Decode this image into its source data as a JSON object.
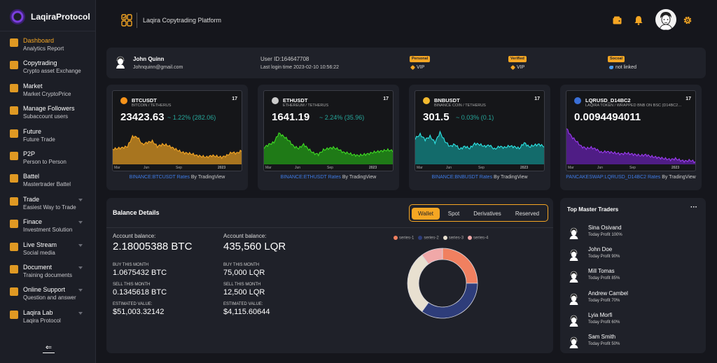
{
  "brand": {
    "name": "LaqiraProtocol"
  },
  "sidebar": {
    "items": [
      {
        "title": "Dashboard",
        "subtitle": "Analytics Report",
        "icon": "home-icon",
        "active": true
      },
      {
        "title": "Copytrading",
        "subtitle": "Crypto asset Exchange",
        "icon": "coin-icon"
      },
      {
        "title": "Market",
        "subtitle": "Market CryptoPrice",
        "icon": "gear-icon"
      },
      {
        "title": "Manage Followers",
        "subtitle": "Subaccount users",
        "icon": "users-icon"
      },
      {
        "title": "Future",
        "subtitle": "Future Trade",
        "icon": "chart-icon"
      },
      {
        "title": "P2P",
        "subtitle": "Person to Person",
        "icon": "p2p-icon"
      },
      {
        "title": "Battel",
        "subtitle": "Mastertrader Battel",
        "icon": "trophy-icon"
      },
      {
        "title": "Trade",
        "subtitle": "Easiest Way to Trade",
        "icon": "hand-icon",
        "chevron": true
      },
      {
        "title": "Finace",
        "subtitle": "Investment Solution",
        "icon": "dollar-icon",
        "chevron": true
      },
      {
        "title": "Live Stream",
        "subtitle": "Social media",
        "icon": "stream-icon",
        "chevron": true
      },
      {
        "title": "Document",
        "subtitle": "Training documents",
        "icon": "document-icon",
        "chevron": true
      },
      {
        "title": "Online Support",
        "subtitle": "Question and answer",
        "icon": "support-icon",
        "chevron": true
      },
      {
        "title": "Laqira Lab",
        "subtitle": "Laqira Protocol",
        "icon": "lab-icon",
        "chevron": true
      }
    ],
    "collapse_glyph": "⇐"
  },
  "topbar": {
    "title": "Laqira Copytrading Platform"
  },
  "user": {
    "name": "John Quinn",
    "email": "Johnquinn@gmail.com",
    "id": "User ID:164647708",
    "last_login": "Last login time 2023-02-10 10:56:22",
    "badges": [
      {
        "label": "Personal",
        "value": "VIP"
      },
      {
        "label": "Verified",
        "value": "VIP"
      },
      {
        "label": "Socoal",
        "value": "not linked"
      }
    ]
  },
  "tickers": [
    {
      "symbol": "BTCUSDT",
      "name": "BITCOIN / TETHERUS",
      "price": "23423.63",
      "change": "~ 1.22% (282.06)",
      "color": "#f7931a",
      "line": "#f5a623",
      "fill": "#a8751f",
      "link": "BINANCE:BTCUSDT Rates",
      "by": " By TradingView",
      "axis": [
        "Mar",
        "Jun",
        "Sep",
        "2023"
      ],
      "coin": "btc-icon",
      "chart": [
        0.62,
        0.6,
        0.58,
        0.55,
        0.3,
        0.32,
        0.5,
        0.45,
        0.42,
        0.55,
        0.5,
        0.52,
        0.58,
        0.64,
        0.7,
        0.72,
        0.74,
        0.78,
        0.8,
        0.82,
        0.78,
        0.8,
        0.82,
        0.78,
        0.7,
        0.72,
        0.66
      ]
    },
    {
      "symbol": "ETHUSDT",
      "name": "ETHEREUM / TETHERUS",
      "price": "1641.19",
      "change": "~ 2.24% (35.96)",
      "color": "#cccccc",
      "line": "#3fdb24",
      "fill": "#1f7a17",
      "link": "BINANCE:ETHUSDT Rates",
      "by": " By TradingView",
      "axis": [
        "Mar",
        "Jun",
        "Sep",
        "2023"
      ],
      "coin": "eth-icon",
      "chart": [
        0.58,
        0.5,
        0.45,
        0.22,
        0.3,
        0.4,
        0.55,
        0.6,
        0.5,
        0.62,
        0.72,
        0.75,
        0.64,
        0.6,
        0.58,
        0.62,
        0.7,
        0.72,
        0.76,
        0.78,
        0.76,
        0.74,
        0.7,
        0.68,
        0.66,
        0.64,
        0.66
      ]
    },
    {
      "symbol": "BNBUSDT",
      "name": "BINANCE COIN / TETHERUS",
      "price": "301.5",
      "change": "~ 0.03% (0.1)",
      "color": "#f3ba2f",
      "line": "#2ee6e6",
      "fill": "#136b6b",
      "link": "BINANCE:BNBUSDT Rates",
      "by": " By TradingView",
      "axis": [
        "Mar",
        "Jun",
        "Sep",
        "2023"
      ],
      "coin": "bnb-icon",
      "chart": [
        0.35,
        0.25,
        0.38,
        0.3,
        0.45,
        0.2,
        0.42,
        0.55,
        0.5,
        0.62,
        0.55,
        0.6,
        0.48,
        0.5,
        0.55,
        0.52,
        0.62,
        0.55,
        0.58,
        0.54,
        0.56,
        0.6,
        0.46,
        0.56,
        0.52,
        0.5,
        0.55
      ]
    },
    {
      "symbol": "LQRUSD_D14BC2",
      "name": "LAQIRA TOKEN / WRAPPED BNB ON BSC (D14BC2…",
      "price": "0.0094494011",
      "change": "",
      "color": "#3a6fd6",
      "line": "#9b3bf0",
      "fill": "#4f1d85",
      "link": "PANCAKESWAP:LQRUSD_D14BC2 Rates",
      "by": " By TradingView",
      "axis": [
        "Mar",
        "Jun",
        "Sep",
        "2023"
      ],
      "coin": "flag-icon",
      "chart": [
        0.1,
        0.3,
        0.42,
        0.55,
        0.6,
        0.58,
        0.62,
        0.7,
        0.68,
        0.7,
        0.72,
        0.74,
        0.72,
        0.74,
        0.76,
        0.78,
        0.76,
        0.8,
        0.82,
        0.84,
        0.86,
        0.88,
        0.86,
        0.9,
        0.92,
        0.9,
        0.94
      ]
    }
  ],
  "balance": {
    "title": "Balance Details",
    "tabs": [
      "Wallet",
      "Spot",
      "Derivatives",
      "Reserved"
    ],
    "active_tab": "Wallet",
    "columns": [
      {
        "label": "Account balance:",
        "amount": "2.18005388 BTC",
        "buy_label": "BUY THIS MONTH",
        "buy": "1.0675432 BTC",
        "sell_label": "SELL THIS MONTH",
        "sell": "0.1345618 BTC",
        "est_label": "ESTIMATED VALUE:",
        "est": "$51,003.32142"
      },
      {
        "label": "Account balance:",
        "amount": "435,560 LQR",
        "buy_label": "BUY THIS MONTH",
        "buy": "75,000 LQR",
        "sell_label": "SELL THIS MONTH",
        "sell": "12,500 LQR",
        "est_label": "ESTIMATED VALUE:",
        "est": "$4,115.60644"
      }
    ]
  },
  "chart_data": {
    "type": "pie",
    "series": [
      {
        "name": "series-1",
        "value": 25,
        "color": "#f08060"
      },
      {
        "name": "series-2",
        "value": 35,
        "color": "#2e3d7a"
      },
      {
        "name": "series-3",
        "value": 30,
        "color": "#e8e0d0"
      },
      {
        "name": "series-4",
        "value": 10,
        "color": "#f0a8a8"
      }
    ],
    "legend_position": "top"
  },
  "traders": {
    "title": "Top Master Traders",
    "more": "···",
    "items": [
      {
        "name": "Sina Osivand",
        "profit": "Today Profit 100%"
      },
      {
        "name": "John Doe",
        "profit": "Today Profit 90%"
      },
      {
        "name": "Mill Tomas",
        "profit": "Today Profit 85%"
      },
      {
        "name": "Andrew Cambel",
        "profit": "Today Profit 70%"
      },
      {
        "name": "Lyia Morfi",
        "profit": "Today Profit 60%"
      },
      {
        "name": "Sam Smith",
        "profit": "Today Profit 50%"
      }
    ]
  }
}
